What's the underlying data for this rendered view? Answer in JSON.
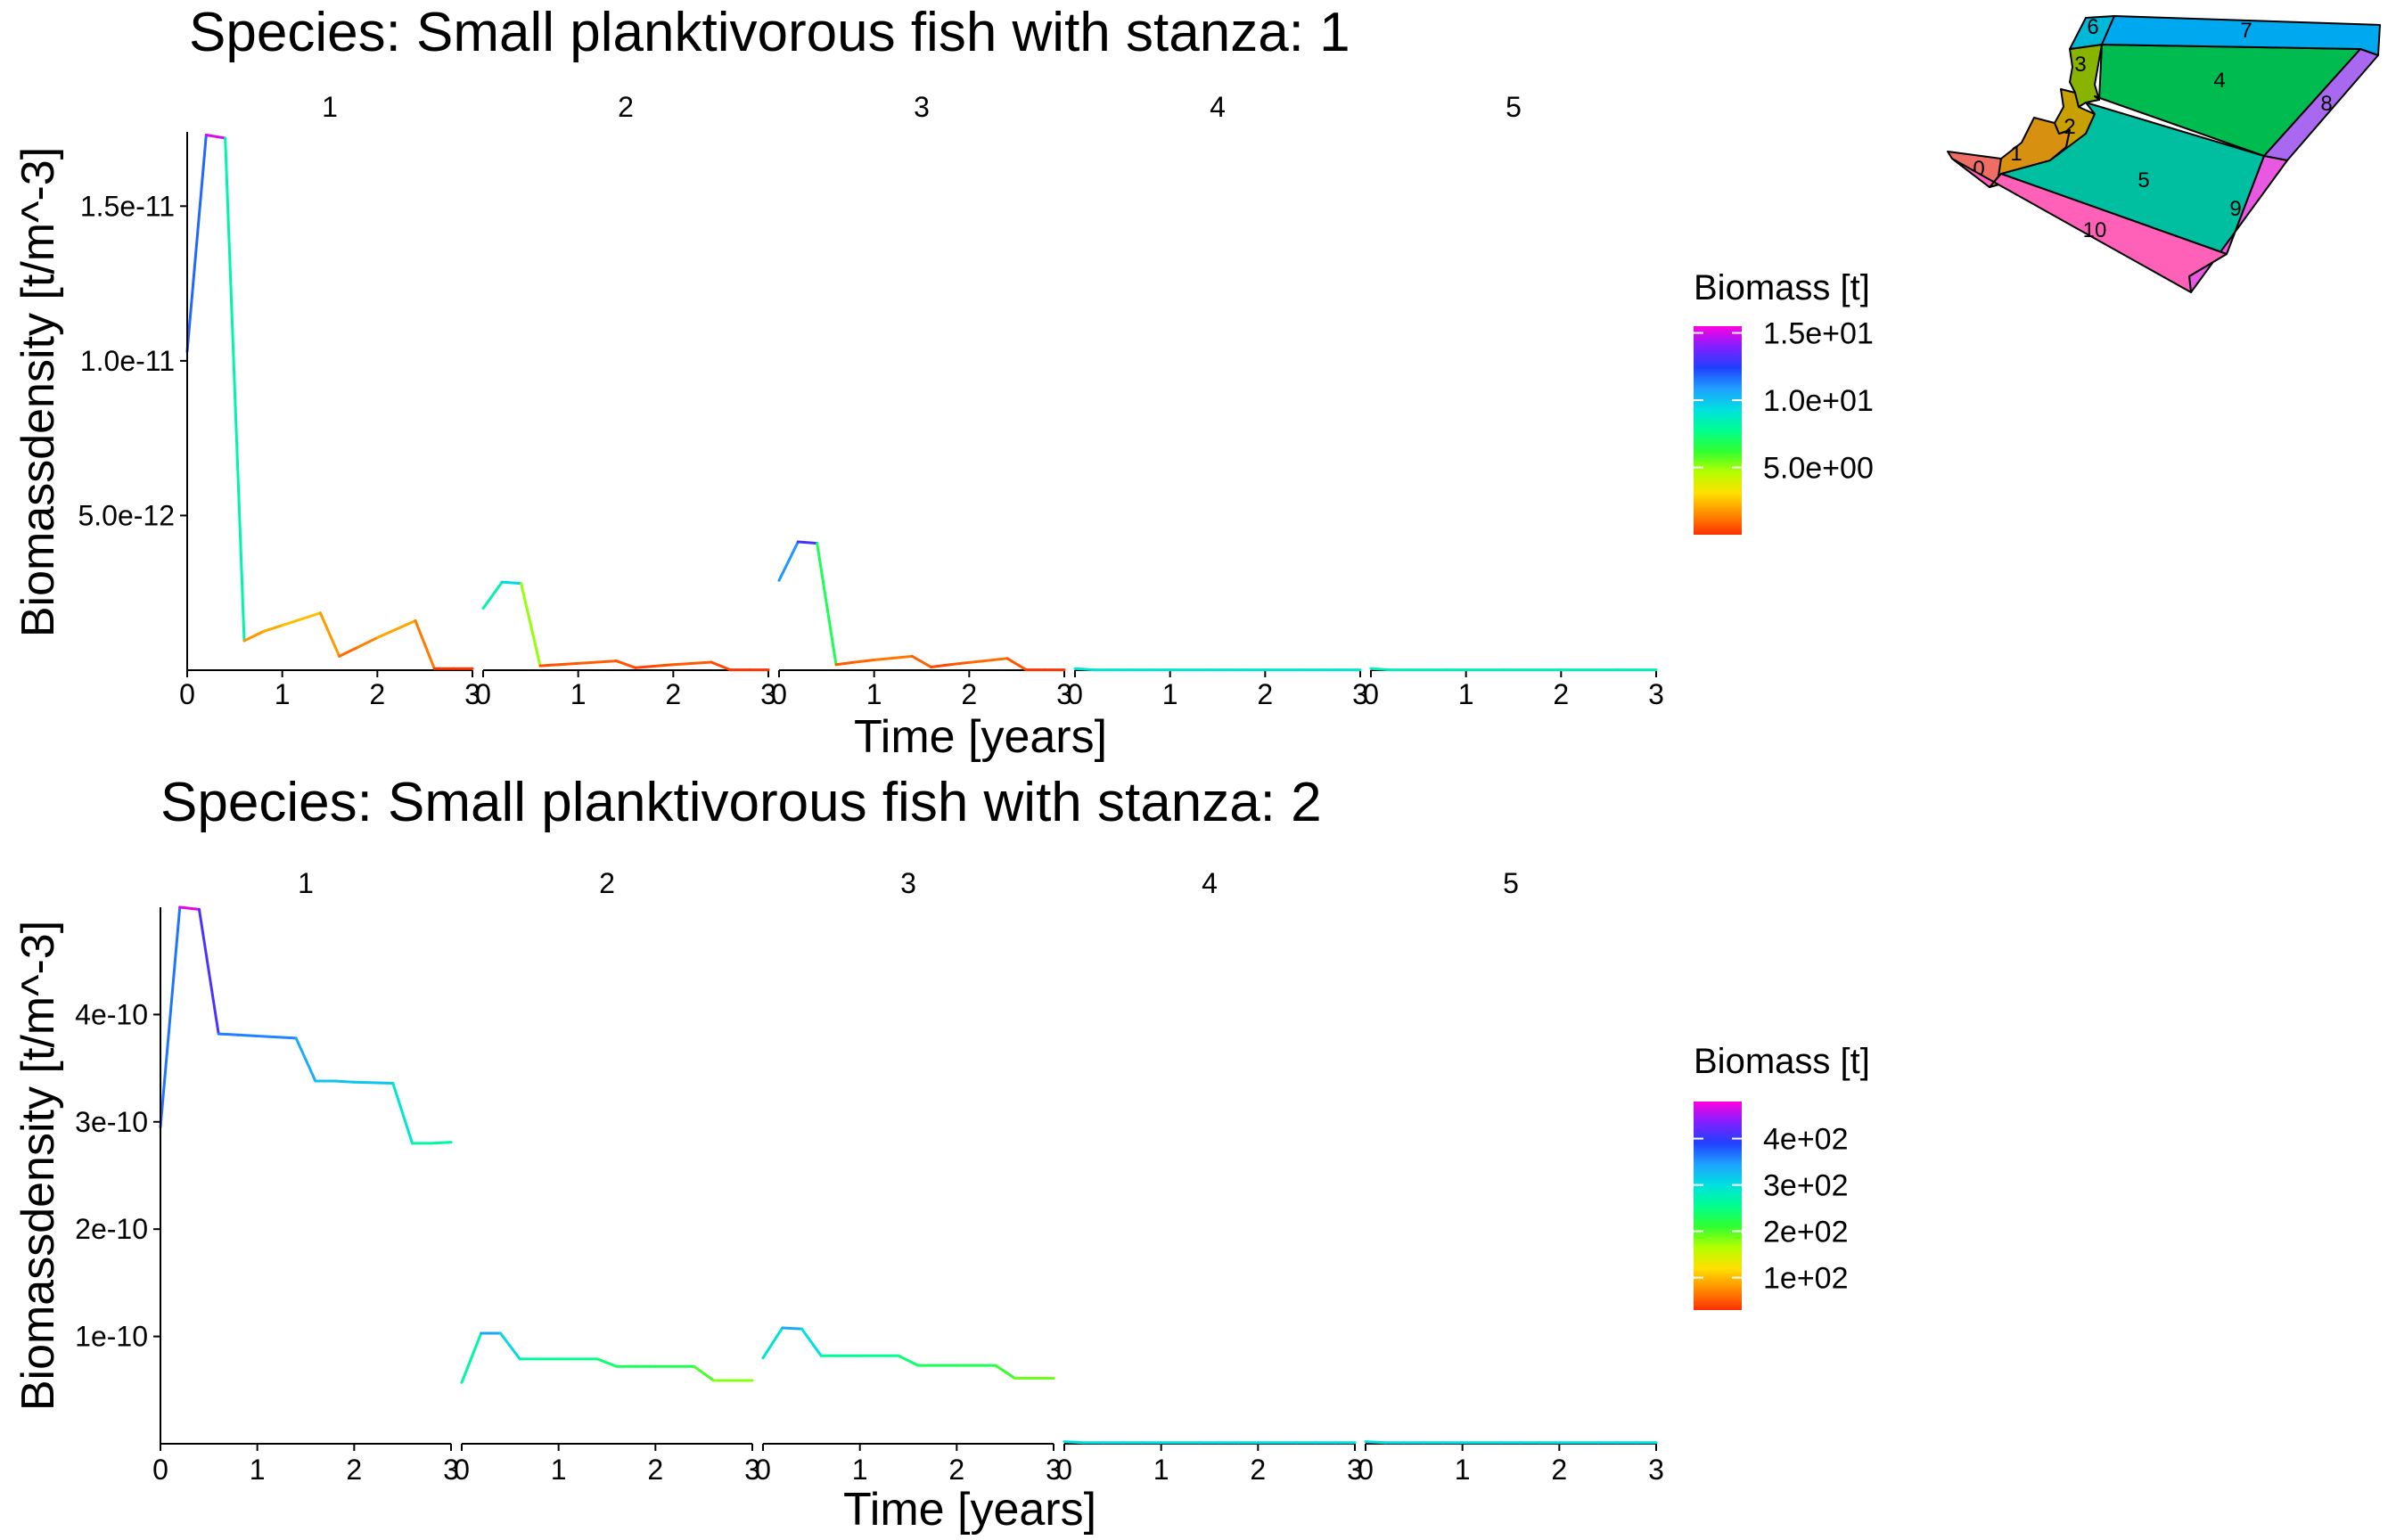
{
  "colors": {
    "scale": [
      "#ff3000",
      "#ff8c00",
      "#ffe000",
      "#b4ff00",
      "#30ff30",
      "#00ff90",
      "#00e0e0",
      "#20a0ff",
      "#2040ff",
      "#8020ff",
      "#ff00e0"
    ]
  },
  "chart_data": [
    {
      "type": "line",
      "title": "Species: Small planktivorous fish with stanza: 1",
      "xlabel": "Time [years]",
      "ylabel": "Biomassdensity [t/m^-3]",
      "panels": [
        "1",
        "2",
        "3",
        "4",
        "5"
      ],
      "xlim": [
        0,
        3
      ],
      "x_ticks": [
        "0",
        "1",
        "2",
        "3"
      ],
      "ylim": [
        0,
        1.74e-11
      ],
      "y_ticks": [
        {
          "v": 5e-12,
          "label": "5.0e-12"
        },
        {
          "v": 1e-11,
          "label": "1.0e-11"
        },
        {
          "v": 1.5e-11,
          "label": "1.5e-11"
        }
      ],
      "color_legend": {
        "title": "Biomass [t]",
        "min": 0,
        "max": 15.5,
        "ticks": [
          {
            "v": 5,
            "label": "5.0e+00"
          },
          {
            "v": 10,
            "label": "1.0e+01"
          },
          {
            "v": 15,
            "label": "1.5e+01"
          }
        ]
      },
      "x": [
        0,
        0.2,
        0.4,
        0.6,
        0.8,
        1.0,
        1.4,
        1.6,
        1.8,
        2.0,
        2.4,
        2.6,
        2.8,
        3.0
      ],
      "series": [
        {
          "panel": "1",
          "y": [
            1.03e-11,
            1.73e-11,
            1.72e-11,
            9.5e-13,
            1.25e-12,
            1.45e-12,
            1.85e-12,
            4.5e-13,
            7.5e-13,
            1.05e-12,
            1.6e-12,
            5e-14,
            5e-14,
            5e-14
          ],
          "biomass": [
            8.5,
            15.0,
            15.0,
            1.5,
            2.0,
            2.2,
            2.8,
            0.8,
            1.2,
            1.6,
            2.4,
            0.1,
            0.1,
            0.1
          ]
        },
        {
          "panel": "2",
          "y": [
            2e-12,
            2.85e-12,
            2.8e-12,
            1.4e-13,
            1.8e-13,
            2.2e-13,
            3e-13,
            8e-14,
            1.3e-13,
            1.8e-13,
            2.6e-13,
            1e-14,
            1e-14,
            1e-14
          ],
          "biomass": [
            7.0,
            9.5,
            9.5,
            0.5,
            0.6,
            0.7,
            0.9,
            0.3,
            0.4,
            0.6,
            0.8,
            0.05,
            0.05,
            0.05
          ]
        },
        {
          "panel": "3",
          "y": [
            2.9e-12,
            4.15e-12,
            4.1e-12,
            1.8e-13,
            2.6e-13,
            3.3e-13,
            4.5e-13,
            1e-13,
            1.8e-13,
            2.5e-13,
            3.8e-13,
            1e-14,
            1e-14,
            1e-14
          ],
          "biomass": [
            9.0,
            13.0,
            13.0,
            0.6,
            0.8,
            1.0,
            1.4,
            0.3,
            0.5,
            0.8,
            1.2,
            0.05,
            0.05,
            0.05
          ]
        },
        {
          "panel": "4",
          "y": [
            5e-14,
            1e-14,
            1e-14,
            1e-14,
            1e-14,
            1e-14,
            1e-14,
            1e-14,
            1e-14,
            1e-14,
            1e-14,
            1e-14,
            1e-14,
            1e-14
          ],
          "biomass": [
            9.0,
            9.0,
            9.0,
            9.0,
            9.0,
            9.0,
            9.0,
            9.0,
            9.0,
            9.0,
            9.0,
            9.0,
            9.0,
            9.0
          ]
        },
        {
          "panel": "5",
          "y": [
            5e-14,
            1e-14,
            1e-14,
            1e-14,
            1e-14,
            1e-14,
            1e-14,
            1e-14,
            1e-14,
            1e-14,
            1e-14,
            1e-14,
            1e-14,
            1e-14
          ],
          "biomass": [
            8.5,
            8.5,
            8.5,
            8.5,
            8.5,
            8.5,
            8.5,
            8.5,
            8.5,
            8.5,
            8.5,
            8.5,
            8.5,
            8.5
          ]
        }
      ]
    },
    {
      "type": "line",
      "title": "Species: Small planktivorous fish with stanza: 2",
      "xlabel": "Time [years]",
      "ylabel": "Biomassdensity [t/m^-3]",
      "panels": [
        "1",
        "2",
        "3",
        "4",
        "5"
      ],
      "xlim": [
        0,
        3
      ],
      "x_ticks": [
        "0",
        "1",
        "2",
        "3"
      ],
      "ylim": [
        0,
        5e-10
      ],
      "y_ticks": [
        {
          "v": 1e-10,
          "label": "1e-10"
        },
        {
          "v": 2e-10,
          "label": "2e-10"
        },
        {
          "v": 3e-10,
          "label": "3e-10"
        },
        {
          "v": 4e-10,
          "label": "4e-10"
        }
      ],
      "color_legend": {
        "title": "Biomass [t]",
        "min": 30,
        "max": 480,
        "ticks": [
          {
            "v": 100,
            "label": "1e+02"
          },
          {
            "v": 200,
            "label": "2e+02"
          },
          {
            "v": 300,
            "label": "3e+02"
          },
          {
            "v": 400,
            "label": "4e+02"
          }
        ]
      },
      "x": [
        0,
        0.2,
        0.4,
        0.6,
        0.8,
        1.0,
        1.4,
        1.6,
        1.8,
        2.0,
        2.4,
        2.6,
        2.8,
        3.0
      ],
      "series": [
        {
          "panel": "1",
          "y": [
            2.95e-10,
            5e-10,
            4.98e-10,
            3.82e-10,
            3.81e-10,
            3.8e-10,
            3.78e-10,
            3.38e-10,
            3.38e-10,
            3.37e-10,
            3.36e-10,
            2.8e-10,
            2.8e-10,
            2.81e-10
          ],
          "biomass": [
            250,
            480,
            460,
            360,
            360,
            360,
            355,
            320,
            320,
            320,
            318,
            265,
            265,
            265
          ]
        },
        {
          "panel": "2",
          "y": [
            5.7e-11,
            1.03e-10,
            1.03e-10,
            7.9e-11,
            7.9e-11,
            7.9e-11,
            7.9e-11,
            7.2e-11,
            7.2e-11,
            7.2e-11,
            7.2e-11,
            5.9e-11,
            5.9e-11,
            5.9e-11
          ],
          "biomass": [
            190,
            340,
            340,
            270,
            260,
            255,
            250,
            230,
            230,
            228,
            225,
            180,
            180,
            180
          ]
        },
        {
          "panel": "3",
          "y": [
            8e-11,
            1.08e-10,
            1.07e-10,
            8.2e-11,
            8.2e-11,
            8.2e-11,
            8.2e-11,
            7.3e-11,
            7.3e-11,
            7.3e-11,
            7.3e-11,
            6.1e-11,
            6.1e-11,
            6.1e-11
          ],
          "biomass": [
            250,
            340,
            340,
            260,
            260,
            258,
            255,
            230,
            230,
            228,
            225,
            190,
            190,
            190
          ]
        },
        {
          "panel": "4",
          "y": [
            2e-12,
            1e-12,
            1e-12,
            1e-12,
            1e-12,
            1e-12,
            1e-12,
            1e-12,
            1e-12,
            1e-12,
            1e-12,
            1e-12,
            1e-12,
            1e-12
          ],
          "biomass": [
            300,
            300,
            300,
            300,
            300,
            300,
            300,
            300,
            300,
            300,
            300,
            300,
            300,
            300
          ]
        },
        {
          "panel": "5",
          "y": [
            2e-12,
            1e-12,
            1e-12,
            1e-12,
            1e-12,
            1e-12,
            1e-12,
            1e-12,
            1e-12,
            1e-12,
            1e-12,
            1e-12,
            1e-12,
            1e-12
          ],
          "biomass": [
            300,
            300,
            300,
            300,
            300,
            300,
            300,
            300,
            300,
            300,
            300,
            300,
            300,
            300
          ]
        }
      ]
    }
  ],
  "map": {
    "boxes": [
      {
        "id": "0",
        "color": "#ee6e66"
      },
      {
        "id": "1",
        "color": "#d89010"
      },
      {
        "id": "2",
        "color": "#c8a000"
      },
      {
        "id": "3",
        "color": "#88b400"
      },
      {
        "id": "4",
        "color": "#00bb50"
      },
      {
        "id": "5",
        "color": "#00bea0"
      },
      {
        "id": "6",
        "color": "#00b8d8"
      },
      {
        "id": "7",
        "color": "#00a8f0"
      },
      {
        "id": "8",
        "color": "#a868f0"
      },
      {
        "id": "9",
        "color": "#e858e0"
      },
      {
        "id": "10",
        "color": "#ff60b8"
      }
    ]
  }
}
